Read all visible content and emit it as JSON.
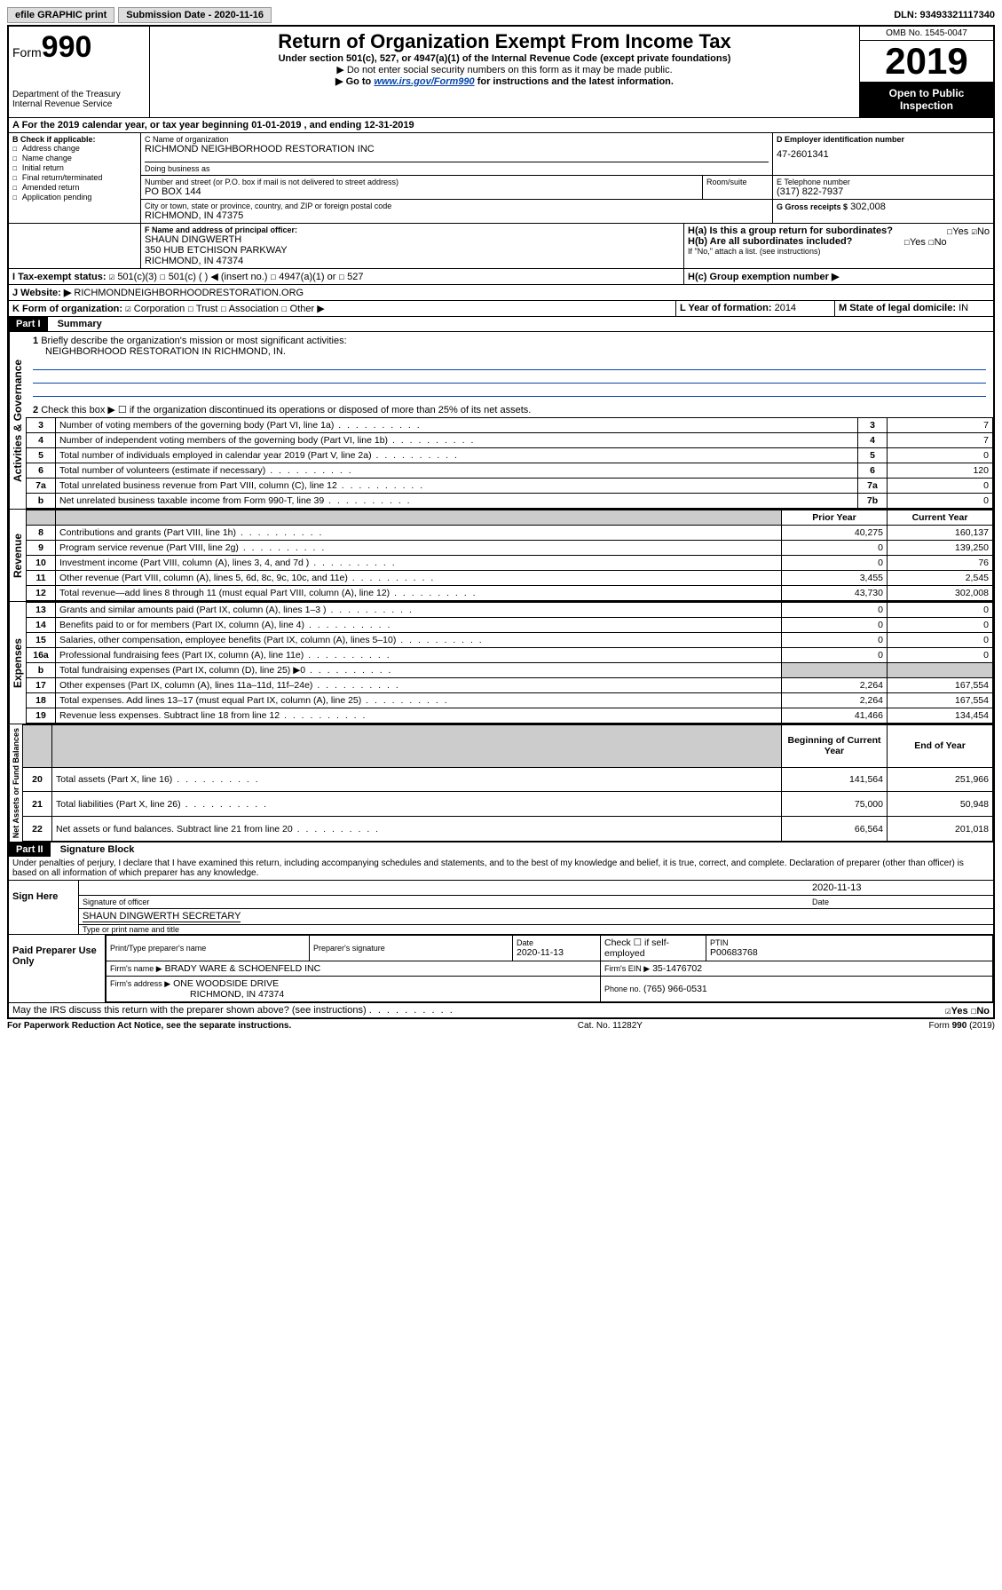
{
  "topbar": {
    "efile": "efile GRAPHIC print",
    "submission_label": "Submission Date - 2020-11-16",
    "dln": "DLN: 93493321117340"
  },
  "header": {
    "form_label": "Form",
    "form_num": "990",
    "dept": "Department of the Treasury\nInternal Revenue Service",
    "title": "Return of Organization Exempt From Income Tax",
    "sub1": "Under section 501(c), 527, or 4947(a)(1) of the Internal Revenue Code (except private foundations)",
    "sub2": "▶ Do not enter social security numbers on this form as it may be made public.",
    "sub3a": "▶ Go to ",
    "sub3_link": "www.irs.gov/Form990",
    "sub3b": " for instructions and the latest information.",
    "omb": "OMB No. 1545-0047",
    "year": "2019",
    "open": "Open to Public Inspection"
  },
  "line_a": "A For the 2019 calendar year, or tax year beginning 01-01-2019   , and ending 12-31-2019",
  "box_b": {
    "label": "B Check if applicable:",
    "items": [
      "Address change",
      "Name change",
      "Initial return",
      "Final return/terminated",
      "Amended return",
      "Application pending"
    ]
  },
  "box_c": {
    "name_label": "C Name of organization",
    "name": "RICHMOND NEIGHBORHOOD RESTORATION INC",
    "dba_label": "Doing business as",
    "addr_label": "Number and street (or P.O. box if mail is not delivered to street address)",
    "room_label": "Room/suite",
    "addr": "PO BOX 144",
    "city_label": "City or town, state or province, country, and ZIP or foreign postal code",
    "city": "RICHMOND, IN  47375"
  },
  "box_d": {
    "label": "D Employer identification number",
    "val": "47-2601341"
  },
  "box_e": {
    "label": "E Telephone number",
    "val": "(317) 822-7937"
  },
  "box_g": {
    "label": "G Gross receipts $",
    "val": "302,008"
  },
  "box_f": {
    "label": "F  Name and address of principal officer:",
    "name": "SHAUN DINGWERTH",
    "addr1": "350 HUB ETCHISON PARKWAY",
    "addr2": "RICHMOND, IN  47374"
  },
  "box_h": {
    "ha": "H(a)  Is this a group return for subordinates?",
    "ha_yes": "Yes",
    "ha_no": "No",
    "hb": "H(b)  Are all subordinates included?",
    "hb_note": "If \"No,\" attach a list. (see instructions)",
    "hc": "H(c)  Group exemption number ▶"
  },
  "box_i": {
    "label": "I    Tax-exempt status:",
    "o1": "501(c)(3)",
    "o2": "501(c) (   ) ◀ (insert no.)",
    "o3": "4947(a)(1) or",
    "o4": "527"
  },
  "box_j": {
    "label": "J    Website: ▶",
    "val": "RICHMONDNEIGHBORHOODRESTORATION.ORG"
  },
  "box_k": {
    "label": "K Form of organization:",
    "o1": "Corporation",
    "o2": "Trust",
    "o3": "Association",
    "o4": "Other ▶"
  },
  "box_l": {
    "label": "L Year of formation:",
    "val": "2014"
  },
  "box_m": {
    "label": "M State of legal domicile:",
    "val": "IN"
  },
  "part1": {
    "bar": "Part I",
    "title": "Summary"
  },
  "summary": {
    "q1": "Briefly describe the organization's mission or most significant activities:",
    "q1_ans": "NEIGHBORHOOD RESTORATION IN RICHMOND, IN.",
    "q2": "Check this box ▶ ☐  if the organization discontinued its operations or disposed of more than 25% of its net assets.",
    "rows_gov": [
      {
        "n": "3",
        "t": "Number of voting members of the governing body (Part VI, line 1a)",
        "box": "3",
        "v": "7"
      },
      {
        "n": "4",
        "t": "Number of independent voting members of the governing body (Part VI, line 1b)",
        "box": "4",
        "v": "7"
      },
      {
        "n": "5",
        "t": "Total number of individuals employed in calendar year 2019 (Part V, line 2a)",
        "box": "5",
        "v": "0"
      },
      {
        "n": "6",
        "t": "Total number of volunteers (estimate if necessary)",
        "box": "6",
        "v": "120"
      },
      {
        "n": "7a",
        "t": "Total unrelated business revenue from Part VIII, column (C), line 12",
        "box": "7a",
        "v": "0"
      },
      {
        "n": "b",
        "t": "Net unrelated business taxable income from Form 990-T, line 39",
        "box": "7b",
        "v": "0"
      }
    ],
    "hdr_prior": "Prior Year",
    "hdr_curr": "Current Year",
    "rows_rev": [
      {
        "n": "8",
        "t": "Contributions and grants (Part VIII, line 1h)",
        "p": "40,275",
        "c": "160,137"
      },
      {
        "n": "9",
        "t": "Program service revenue (Part VIII, line 2g)",
        "p": "0",
        "c": "139,250"
      },
      {
        "n": "10",
        "t": "Investment income (Part VIII, column (A), lines 3, 4, and 7d )",
        "p": "0",
        "c": "76"
      },
      {
        "n": "11",
        "t": "Other revenue (Part VIII, column (A), lines 5, 6d, 8c, 9c, 10c, and 11e)",
        "p": "3,455",
        "c": "2,545"
      },
      {
        "n": "12",
        "t": "Total revenue—add lines 8 through 11 (must equal Part VIII, column (A), line 12)",
        "p": "43,730",
        "c": "302,008"
      }
    ],
    "rows_exp": [
      {
        "n": "13",
        "t": "Grants and similar amounts paid (Part IX, column (A), lines 1–3 )",
        "p": "0",
        "c": "0"
      },
      {
        "n": "14",
        "t": "Benefits paid to or for members (Part IX, column (A), line 4)",
        "p": "0",
        "c": "0"
      },
      {
        "n": "15",
        "t": "Salaries, other compensation, employee benefits (Part IX, column (A), lines 5–10)",
        "p": "0",
        "c": "0"
      },
      {
        "n": "16a",
        "t": "Professional fundraising fees (Part IX, column (A), line 11e)",
        "p": "0",
        "c": "0"
      },
      {
        "n": "b",
        "t": "Total fundraising expenses (Part IX, column (D), line 25) ▶0",
        "p": "",
        "c": ""
      },
      {
        "n": "17",
        "t": "Other expenses (Part IX, column (A), lines 11a–11d, 11f–24e)",
        "p": "2,264",
        "c": "167,554"
      },
      {
        "n": "18",
        "t": "Total expenses. Add lines 13–17 (must equal Part IX, column (A), line 25)",
        "p": "2,264",
        "c": "167,554"
      },
      {
        "n": "19",
        "t": "Revenue less expenses. Subtract line 18 from line 12",
        "p": "41,466",
        "c": "134,454"
      }
    ],
    "hdr_beg": "Beginning of Current Year",
    "hdr_end": "End of Year",
    "rows_net": [
      {
        "n": "20",
        "t": "Total assets (Part X, line 16)",
        "p": "141,564",
        "c": "251,966"
      },
      {
        "n": "21",
        "t": "Total liabilities (Part X, line 26)",
        "p": "75,000",
        "c": "50,948"
      },
      {
        "n": "22",
        "t": "Net assets or fund balances. Subtract line 21 from line 20",
        "p": "66,564",
        "c": "201,018"
      }
    ],
    "vlabels": {
      "gov": "Activities & Governance",
      "rev": "Revenue",
      "exp": "Expenses",
      "net": "Net Assets or Fund Balances"
    }
  },
  "part2": {
    "bar": "Part II",
    "title": "Signature Block"
  },
  "perjury": "Under penalties of perjury, I declare that I have examined this return, including accompanying schedules and statements, and to the best of my knowledge and belief, it is true, correct, and complete. Declaration of preparer (other than officer) is based on all information of which preparer has any knowledge.",
  "sign": {
    "here": "Sign Here",
    "date": "2020-11-13",
    "sig_label": "Signature of officer",
    "date_label": "Date",
    "name": "SHAUN DINGWERTH SECRETARY",
    "name_label": "Type or print name and title"
  },
  "preparer": {
    "label": "Paid Preparer Use Only",
    "h1": "Print/Type preparer's name",
    "h2": "Preparer's signature",
    "h3": "Date",
    "date": "2020-11-13",
    "h4": "Check ☐ if self-employed",
    "h5": "PTIN",
    "ptin": "P00683768",
    "firm_label": "Firm's name    ▶",
    "firm": "BRADY WARE & SCHOENFELD INC",
    "ein_label": "Firm's EIN ▶",
    "ein": "35-1476702",
    "addr_label": "Firm's address ▶",
    "addr1": "ONE WOODSIDE DRIVE",
    "addr2": "RICHMOND, IN  47374",
    "phone_label": "Phone no.",
    "phone": "(765) 966-0531"
  },
  "discuss": {
    "q": "May the IRS discuss this return with the preparer shown above? (see instructions)",
    "yes": "Yes",
    "no": "No"
  },
  "footer": {
    "left": "For Paperwork Reduction Act Notice, see the separate instructions.",
    "mid": "Cat. No. 11282Y",
    "right": "Form 990 (2019)"
  }
}
